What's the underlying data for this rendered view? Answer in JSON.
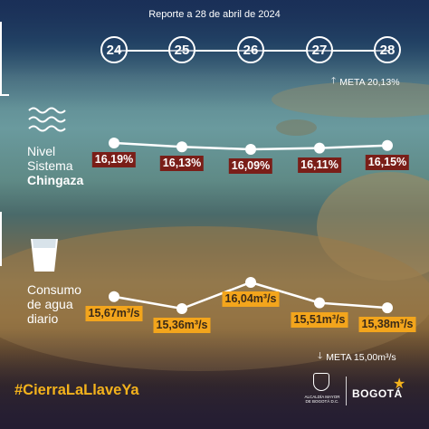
{
  "header": {
    "report_label": "Reporte a 28 de abril de 2024"
  },
  "days": [
    "24",
    "25",
    "26",
    "27",
    "28"
  ],
  "level_section": {
    "title_line1": "Nivel",
    "title_line2": "Sistema",
    "title_line3": "Chingaza",
    "meta_arrow": "🡑",
    "meta_label": "META 20,13%"
  },
  "consumption_section": {
    "title_line1": "Consumo",
    "title_line2": "de agua",
    "title_line3": "diario",
    "meta_arrow": "🡓",
    "meta_label": "META 15,00m³/s"
  },
  "footer": {
    "hashtag": "#CierraLaLlaveYa",
    "alcaldia_line1": "ALCALDÍA MAYOR",
    "alcaldia_line2": "DE BOGOTÁ D.C.",
    "brand": "BOGOTÁ"
  },
  "colors": {
    "level_badge": "#7a1e18",
    "consumption_badge": "#f3a51c",
    "hashtag": "#f3b21c",
    "line": "#ffffff"
  },
  "chart_data": [
    {
      "type": "line",
      "title": "Nivel Sistema Chingaza",
      "x": [
        "24",
        "25",
        "26",
        "27",
        "28"
      ],
      "series": [
        {
          "values": [
            16.19,
            16.13,
            16.09,
            16.11,
            16.15
          ],
          "labels": [
            "16,19%",
            "16,13%",
            "16,09%",
            "16,11%",
            "16,15%"
          ]
        }
      ],
      "target": 20.13,
      "unit": "%"
    },
    {
      "type": "line",
      "title": "Consumo de agua diario",
      "x": [
        "24",
        "25",
        "26",
        "27",
        "28"
      ],
      "series": [
        {
          "values": [
            15.67,
            15.36,
            16.04,
            15.51,
            15.38
          ],
          "labels": [
            "15,67m³/s",
            "15,36m³/s",
            "16,04m³/s",
            "15,51m³/s",
            "15,38m³/s"
          ]
        }
      ],
      "target": 15.0,
      "unit": "m³/s"
    }
  ]
}
